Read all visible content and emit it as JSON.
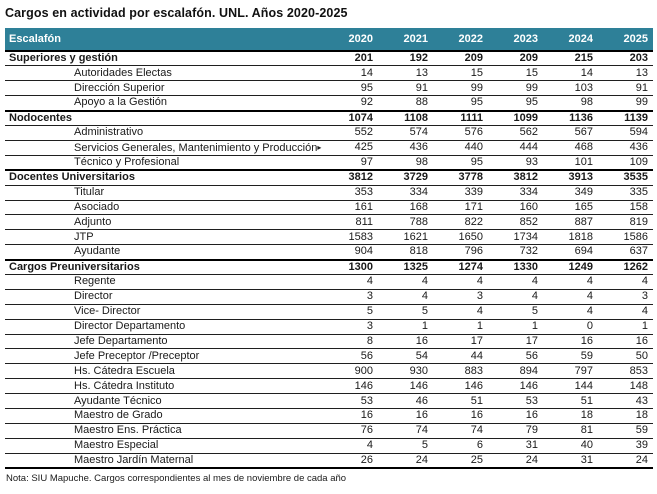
{
  "title": "Cargos en actividad por escalafón. UNL. Años 2020-2025",
  "note": "Nota: SIU Mapuche. Cargos correspondientes al mes de noviembre de cada año",
  "colors": {
    "header_bg": "#2e8098",
    "header_text": "#ffffff",
    "row_line": "#1f1f1f",
    "section_line": "#000000"
  },
  "icons": {
    "overflow_arrow": "▸"
  },
  "chart_data": {
    "type": "table",
    "columns": [
      "Escalafón",
      "2020",
      "2021",
      "2022",
      "2023",
      "2024",
      "2025"
    ],
    "rows": [
      {
        "label": "Superiores y gestión",
        "level": "section",
        "values": [
          201,
          192,
          209,
          209,
          215,
          203
        ]
      },
      {
        "label": "Autoridades Electas",
        "level": "sub",
        "values": [
          14,
          13,
          15,
          15,
          14,
          13
        ]
      },
      {
        "label": "Dirección Superior",
        "level": "sub",
        "values": [
          95,
          91,
          99,
          99,
          103,
          91
        ]
      },
      {
        "label": "Apoyo a la Gestión",
        "level": "sub",
        "values": [
          92,
          88,
          95,
          95,
          98,
          99
        ]
      },
      {
        "label": "Nodocentes",
        "level": "section",
        "values": [
          1074,
          1108,
          1111,
          1099,
          1136,
          1139
        ]
      },
      {
        "label": "Administrativo",
        "level": "sub",
        "values": [
          552,
          574,
          576,
          562,
          567,
          594
        ]
      },
      {
        "label": "Servicios Generales, Mantenimiento y Producción",
        "level": "sub",
        "truncated": true,
        "values": [
          425,
          436,
          440,
          444,
          468,
          436
        ]
      },
      {
        "label": "Técnico y Profesional",
        "level": "sub",
        "values": [
          97,
          98,
          95,
          93,
          101,
          109
        ]
      },
      {
        "label": "Docentes Universitarios",
        "level": "section",
        "values": [
          3812,
          3729,
          3778,
          3812,
          3913,
          3535
        ]
      },
      {
        "label": "Titular",
        "level": "sub",
        "values": [
          353,
          334,
          339,
          334,
          349,
          335
        ]
      },
      {
        "label": "Asociado",
        "level": "sub",
        "values": [
          161,
          168,
          171,
          160,
          165,
          158
        ]
      },
      {
        "label": "Adjunto",
        "level": "sub",
        "values": [
          811,
          788,
          822,
          852,
          887,
          819
        ]
      },
      {
        "label": "JTP",
        "level": "sub",
        "values": [
          1583,
          1621,
          1650,
          1734,
          1818,
          1586
        ]
      },
      {
        "label": "Ayudante",
        "level": "sub",
        "values": [
          904,
          818,
          796,
          732,
          694,
          637
        ]
      },
      {
        "label": "Cargos Preuniversitarios",
        "level": "section",
        "values": [
          1300,
          1325,
          1274,
          1330,
          1249,
          1262
        ]
      },
      {
        "label": "Regente",
        "level": "sub",
        "values": [
          4,
          4,
          4,
          4,
          4,
          4
        ]
      },
      {
        "label": "Director",
        "level": "sub",
        "values": [
          3,
          4,
          3,
          4,
          4,
          3
        ]
      },
      {
        "label": "Vice- Director",
        "level": "sub",
        "values": [
          5,
          5,
          4,
          5,
          4,
          4
        ]
      },
      {
        "label": "Director Departamento",
        "level": "sub",
        "values": [
          3,
          1,
          1,
          1,
          0,
          1
        ]
      },
      {
        "label": "Jefe Departamento",
        "level": "sub",
        "values": [
          8,
          16,
          17,
          17,
          16,
          16
        ]
      },
      {
        "label": "Jefe Preceptor /Preceptor",
        "level": "sub",
        "values": [
          56,
          54,
          44,
          56,
          59,
          50
        ]
      },
      {
        "label": "Hs. Cátedra Escuela",
        "level": "sub",
        "values": [
          900,
          930,
          883,
          894,
          797,
          853
        ]
      },
      {
        "label": "Hs. Cátedra Instituto",
        "level": "sub",
        "values": [
          146,
          146,
          146,
          146,
          144,
          148
        ]
      },
      {
        "label": "Ayudante Técnico",
        "level": "sub",
        "values": [
          53,
          46,
          51,
          53,
          51,
          43
        ]
      },
      {
        "label": "Maestro de Grado",
        "level": "sub",
        "values": [
          16,
          16,
          16,
          16,
          18,
          18
        ]
      },
      {
        "label": "Maestro Ens. Práctica",
        "level": "sub",
        "values": [
          76,
          74,
          74,
          79,
          81,
          59
        ]
      },
      {
        "label": "Maestro Especial",
        "level": "sub",
        "values": [
          4,
          5,
          6,
          31,
          40,
          39
        ]
      },
      {
        "label": "Maestro Jardín Maternal",
        "level": "sub",
        "values": [
          26,
          24,
          25,
          24,
          31,
          24
        ]
      }
    ]
  }
}
